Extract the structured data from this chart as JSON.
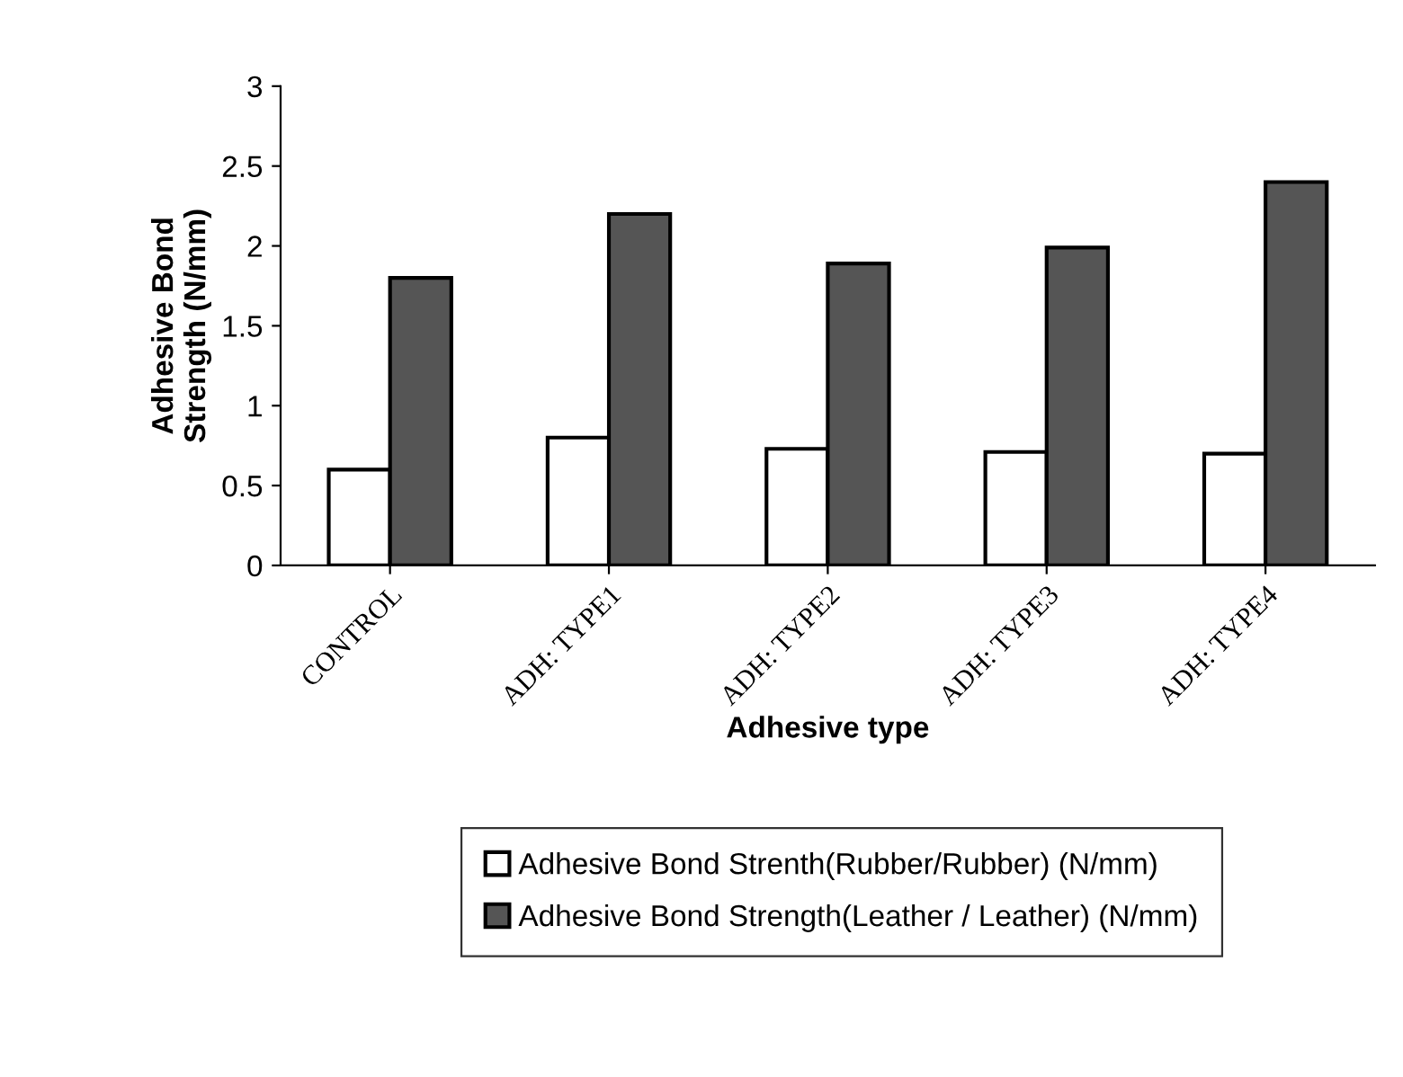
{
  "chart_data": {
    "type": "bar",
    "xlabel": "Adhesive type",
    "ylabel": "Adhesive Bond\nStrength (N/mm)",
    "categories": [
      "CONTROL",
      "ADH: TYPE1",
      "ADH: TYPE2",
      "ADH: TYPE3",
      "ADH: TYPE4"
    ],
    "series": [
      {
        "name": "Adhesive Bond Strenth(Rubber/Rubber) (N/mm)",
        "color": "#ffffff",
        "values": [
          0.6,
          0.8,
          0.73,
          0.71,
          0.7
        ]
      },
      {
        "name": "Adhesive Bond Strength(Leather / Leather) (N/mm)",
        "color": "#555555",
        "values": [
          1.8,
          2.2,
          1.89,
          1.99,
          2.4
        ]
      }
    ],
    "ylim": [
      0,
      3
    ],
    "yticks": [
      0,
      0.5,
      1,
      1.5,
      2,
      2.5,
      3
    ],
    "grid": false,
    "legend": "bottom"
  }
}
